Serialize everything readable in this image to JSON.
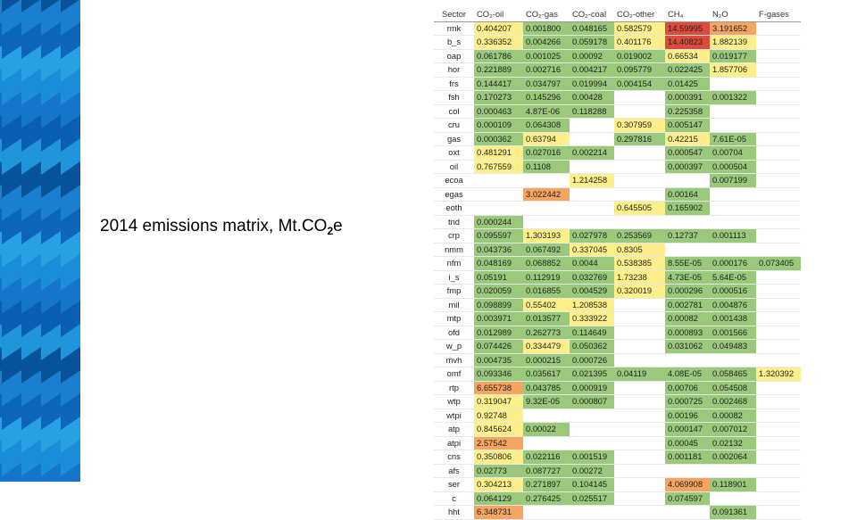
{
  "slide": {
    "title_main": "2014 emissions matrix, Mt.CO",
    "title_sub": "2",
    "title_end": "e"
  },
  "matrix": {
    "headers": [
      "Sector",
      "CO₂-oil",
      "CO₂-gas",
      "CO₂-coal",
      "CO₂-other",
      "CH₄",
      "N₂O",
      "F-gases"
    ],
    "rows": [
      {
        "sector": "rmk",
        "cells": [
          "0.404207",
          "0.001800",
          "0.048165",
          "0.582579",
          "14.59995",
          "3.191652",
          ""
        ]
      },
      {
        "sector": "b_s",
        "cells": [
          "0.336352",
          "0.004266",
          "0.059178",
          "0.401176",
          "14.40823",
          "1.882139",
          ""
        ]
      },
      {
        "sector": "oap",
        "cells": [
          "0.061786",
          "0.001025",
          "0.00092",
          "0.019002",
          "0.66534",
          "0.019177",
          ""
        ]
      },
      {
        "sector": "hor",
        "cells": [
          "0.221889",
          "0.002716",
          "0.004217",
          "0.095779",
          "0.022425",
          "1.857706",
          ""
        ]
      },
      {
        "sector": "frs",
        "cells": [
          "0.144417",
          "0.034797",
          "0.019994",
          "0.004154",
          "0.01425",
          "",
          ""
        ]
      },
      {
        "sector": "fsh",
        "cells": [
          "0.170273",
          "0.145296",
          "0.00428",
          "",
          "0.000391",
          "0.001322",
          ""
        ]
      },
      {
        "sector": "col",
        "cells": [
          "0.000463",
          "4.87E-06",
          "0.118288",
          "",
          "0.225358",
          "",
          ""
        ]
      },
      {
        "sector": "cru",
        "cells": [
          "0.000109",
          "0.064308",
          "",
          "0.307959",
          "0.005147",
          "",
          ""
        ]
      },
      {
        "sector": "gas",
        "cells": [
          "0.000362",
          "0.63794",
          "",
          "0.297816",
          "0.42215",
          "7.61E-05",
          ""
        ]
      },
      {
        "sector": "oxt",
        "cells": [
          "0.481291",
          "0.027016",
          "0.002214",
          "",
          "0.000547",
          "0.00704",
          ""
        ]
      },
      {
        "sector": "oil",
        "cells": [
          "0.767559",
          "0.1108",
          "",
          "",
          "0.000397",
          "0.000504",
          ""
        ]
      },
      {
        "sector": "ecoa",
        "cells": [
          "",
          "",
          "1.214258",
          "",
          "",
          "0.007199",
          ""
        ]
      },
      {
        "sector": "egas",
        "cells": [
          "",
          "3.022442",
          "",
          "",
          "0.00164",
          "",
          ""
        ]
      },
      {
        "sector": "eoth",
        "cells": [
          "",
          "",
          "",
          "0.645505",
          "0.165902",
          "",
          ""
        ]
      },
      {
        "sector": "tnd",
        "cells": [
          "0.000244",
          "",
          "",
          "",
          "",
          "",
          ""
        ]
      },
      {
        "sector": "crp",
        "cells": [
          "0.095597",
          "1.303193",
          "0.027978",
          "0.253569",
          "0.12737",
          "0.001113",
          ""
        ]
      },
      {
        "sector": "nmm",
        "cells": [
          "0.043736",
          "0.067492",
          "0.337045",
          "0.8305",
          "",
          "",
          ""
        ]
      },
      {
        "sector": "nfm",
        "cells": [
          "0.048169",
          "0.068852",
          "0.0044",
          "0.538385",
          "8.55E-05",
          "0.000176",
          "0.073405"
        ]
      },
      {
        "sector": "i_s",
        "cells": [
          "0.05191",
          "0.112919",
          "0.032769",
          "1.73238",
          "4.73E-05",
          "5.64E-05",
          ""
        ]
      },
      {
        "sector": "fmp",
        "cells": [
          "0.020059",
          "0.016855",
          "0.004529",
          "0.320019",
          "0.000296",
          "0.000516",
          ""
        ]
      },
      {
        "sector": "mil",
        "cells": [
          "0.098899",
          "0.55402",
          "1.208538",
          "",
          "0.002781",
          "0.004876",
          ""
        ]
      },
      {
        "sector": "mtp",
        "cells": [
          "0.003971",
          "0.013577",
          "0.333922",
          "",
          "0.00082",
          "0.001438",
          ""
        ]
      },
      {
        "sector": "ofd",
        "cells": [
          "0.012989",
          "0.262773",
          "0.114649",
          "",
          "0.000893",
          "0.001566",
          ""
        ]
      },
      {
        "sector": "w_p",
        "cells": [
          "0.074426",
          "0.334479",
          "0.050362",
          "",
          "0.031062",
          "0.049483",
          ""
        ]
      },
      {
        "sector": "mvh",
        "cells": [
          "0.004735",
          "0.000215",
          "0.000726",
          "",
          "",
          "",
          ""
        ]
      },
      {
        "sector": "omf",
        "cells": [
          "0.093346",
          "0.035617",
          "0.021395",
          "0.04119",
          "4.08E-05",
          "0.058465",
          "1.320392"
        ]
      },
      {
        "sector": "rtp",
        "cells": [
          "6.655738",
          "0.043785",
          "0.000919",
          "",
          "0.00706",
          "0.054508",
          ""
        ]
      },
      {
        "sector": "wtp",
        "cells": [
          "0.319047",
          "9.32E-05",
          "0.000807",
          "",
          "0.000725",
          "0.002468",
          ""
        ]
      },
      {
        "sector": "wtpi",
        "cells": [
          "0.92748",
          "",
          "",
          "",
          "0.00196",
          "0.00082",
          ""
        ]
      },
      {
        "sector": "atp",
        "cells": [
          "0.845624",
          "0.00022",
          "",
          "",
          "0.000147",
          "0.007012",
          ""
        ]
      },
      {
        "sector": "atpi",
        "cells": [
          "2.57542",
          "",
          "",
          "",
          "0.00045",
          "0.02132",
          ""
        ]
      },
      {
        "sector": "cns",
        "cells": [
          "0.350806",
          "0.022116",
          "0.001519",
          "",
          "0.001181",
          "0.002064",
          ""
        ]
      },
      {
        "sector": "afs",
        "cells": [
          "0.02773",
          "0.087727",
          "0.00272",
          "",
          "",
          "",
          ""
        ]
      },
      {
        "sector": "ser",
        "cells": [
          "0.304213",
          "0.271897",
          "0.104145",
          "",
          "4.069908",
          "0.118901",
          ""
        ]
      },
      {
        "sector": "c",
        "cells": [
          "0.064129",
          "0.276425",
          "0.025517",
          "",
          "0.074597",
          "",
          ""
        ]
      },
      {
        "sector": "hht",
        "cells": [
          "6.348731",
          "",
          "",
          "",
          "",
          "0.091361",
          ""
        ]
      }
    ]
  },
  "colors": {
    "green": "#9bc97c",
    "yellow": "#fdf08a",
    "orange": "#f5a561",
    "red": "#e04a3c",
    "deco_light": "#2fb0e8",
    "deco_dark": "#0a4fa6"
  }
}
